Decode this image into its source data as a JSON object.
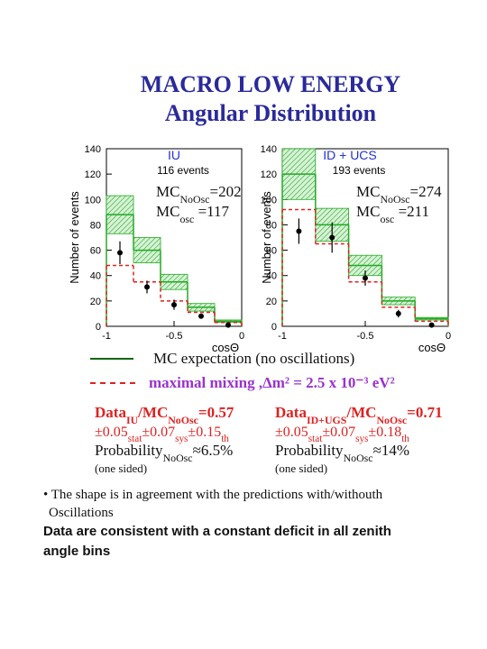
{
  "slide": {
    "title": [
      "MACRO LOW ENERGY",
      "Angular Distribution"
    ],
    "results": [
      [
        [
          {
            "t": "Data"
          },
          {
            "t": "IU",
            "sub": true
          },
          {
            "t": "/MC"
          },
          {
            "t": "NoOsc",
            "sub": true
          },
          {
            "t": "=0.57"
          }
        ],
        [
          {
            "t": "±0.05"
          },
          {
            "t": "stat",
            "sub": true
          },
          {
            "t": "±0.07"
          },
          {
            "t": "sys",
            "sub": true
          },
          {
            "t": "±0.15"
          },
          {
            "t": "th",
            "sub": true
          }
        ],
        [
          {
            "t": "Probability"
          },
          {
            "t": "NoOsc",
            "sub": true
          },
          {
            "t": "≈6.5%"
          }
        ],
        [
          {
            "t": "(one sided)"
          }
        ]
      ],
      [
        [
          {
            "t": "Data"
          },
          {
            "t": "ID+UGS",
            "sub": true
          },
          {
            "t": "/MC"
          },
          {
            "t": "NoOsc",
            "sub": true
          },
          {
            "t": "=0.71"
          }
        ],
        [
          {
            "t": "±0.05"
          },
          {
            "t": "stat",
            "sub": true
          },
          {
            "t": "±0.07"
          },
          {
            "t": "sys",
            "sub": true
          },
          {
            "t": "±0.18"
          },
          {
            "t": "th",
            "sub": true
          }
        ],
        [
          {
            "t": "Probability"
          },
          {
            "t": "NoOsc",
            "sub": true
          },
          {
            "t": "≈14%"
          }
        ],
        [
          {
            "t": "(one sided)"
          }
        ]
      ]
    ],
    "bullet": [
      "•  The shape is in agreement with the predictions with/withouth",
      "Oscillations"
    ],
    "conclusion": [
      "Data are consistent with a constant deficit in all zenith",
      "angle bins"
    ]
  },
  "chart_data": [
    {
      "type": "histogram",
      "title": "IU",
      "subtitle": "116 events",
      "xlabel": "cosΘ",
      "ylabel": "Number of events",
      "bins": [
        -1,
        -0.8,
        -0.6,
        -0.4,
        -0.2,
        0
      ],
      "xlim": [
        -1,
        0
      ],
      "xticks": [
        -1,
        -0.5,
        0
      ],
      "ylim": [
        0,
        140
      ],
      "yticks": [
        0,
        20,
        40,
        60,
        80,
        100,
        120,
        140
      ],
      "annotations": [
        [
          {
            "t": "MC"
          },
          {
            "t": "NoOsc",
            "sub": true
          },
          {
            "t": "=202"
          }
        ],
        [
          {
            "t": "MC"
          },
          {
            "t": "osc",
            "sub": true
          },
          {
            "t": " =117"
          }
        ]
      ],
      "series": [
        {
          "name": "MC expectation (no oscillations)",
          "color": "#22aa22",
          "values": [
            88,
            60,
            35,
            15,
            4
          ],
          "errors": [
            15,
            10,
            6,
            3,
            1
          ]
        },
        {
          "name": "maximal mixing ,Δm² = 2.5 x 10⁻³ eV²",
          "color": "#dd2222",
          "values": [
            48,
            35,
            20,
            11,
            3
          ]
        },
        {
          "color": "#000000",
          "values": [
            58,
            31,
            17,
            8,
            1
          ],
          "errors": [
            9,
            5,
            4,
            2,
            1
          ]
        }
      ]
    },
    {
      "type": "histogram",
      "title": "ID + UCS",
      "subtitle": "193 events",
      "xlabel": "cosΘ",
      "ylabel": "Number of events",
      "bins": [
        -1,
        -0.8,
        -0.6,
        -0.4,
        -0.2,
        0
      ],
      "xlim": [
        -1,
        0
      ],
      "xticks": [
        -1,
        -0.5,
        0
      ],
      "ylim": [
        0,
        140
      ],
      "yticks": [
        0,
        20,
        40,
        60,
        80,
        100,
        120,
        140
      ],
      "annotations": [
        [
          {
            "t": "MC"
          },
          {
            "t": "NoOsc",
            "sub": true
          },
          {
            "t": "=274"
          }
        ],
        [
          {
            "t": "MC"
          },
          {
            "t": "osc",
            "sub": true
          },
          {
            "t": "   =211"
          }
        ]
      ],
      "series": [
        {
          "color": "#22aa22",
          "values": [
            120,
            80,
            48,
            20,
            6
          ],
          "errors": [
            20,
            13,
            8,
            3,
            1
          ]
        },
        {
          "color": "#dd2222",
          "values": [
            92,
            65,
            35,
            15,
            4
          ]
        },
        {
          "color": "#000000",
          "values": [
            75,
            70,
            38,
            10,
            1
          ],
          "errors": [
            10,
            12,
            6,
            3,
            1
          ]
        }
      ]
    }
  ]
}
